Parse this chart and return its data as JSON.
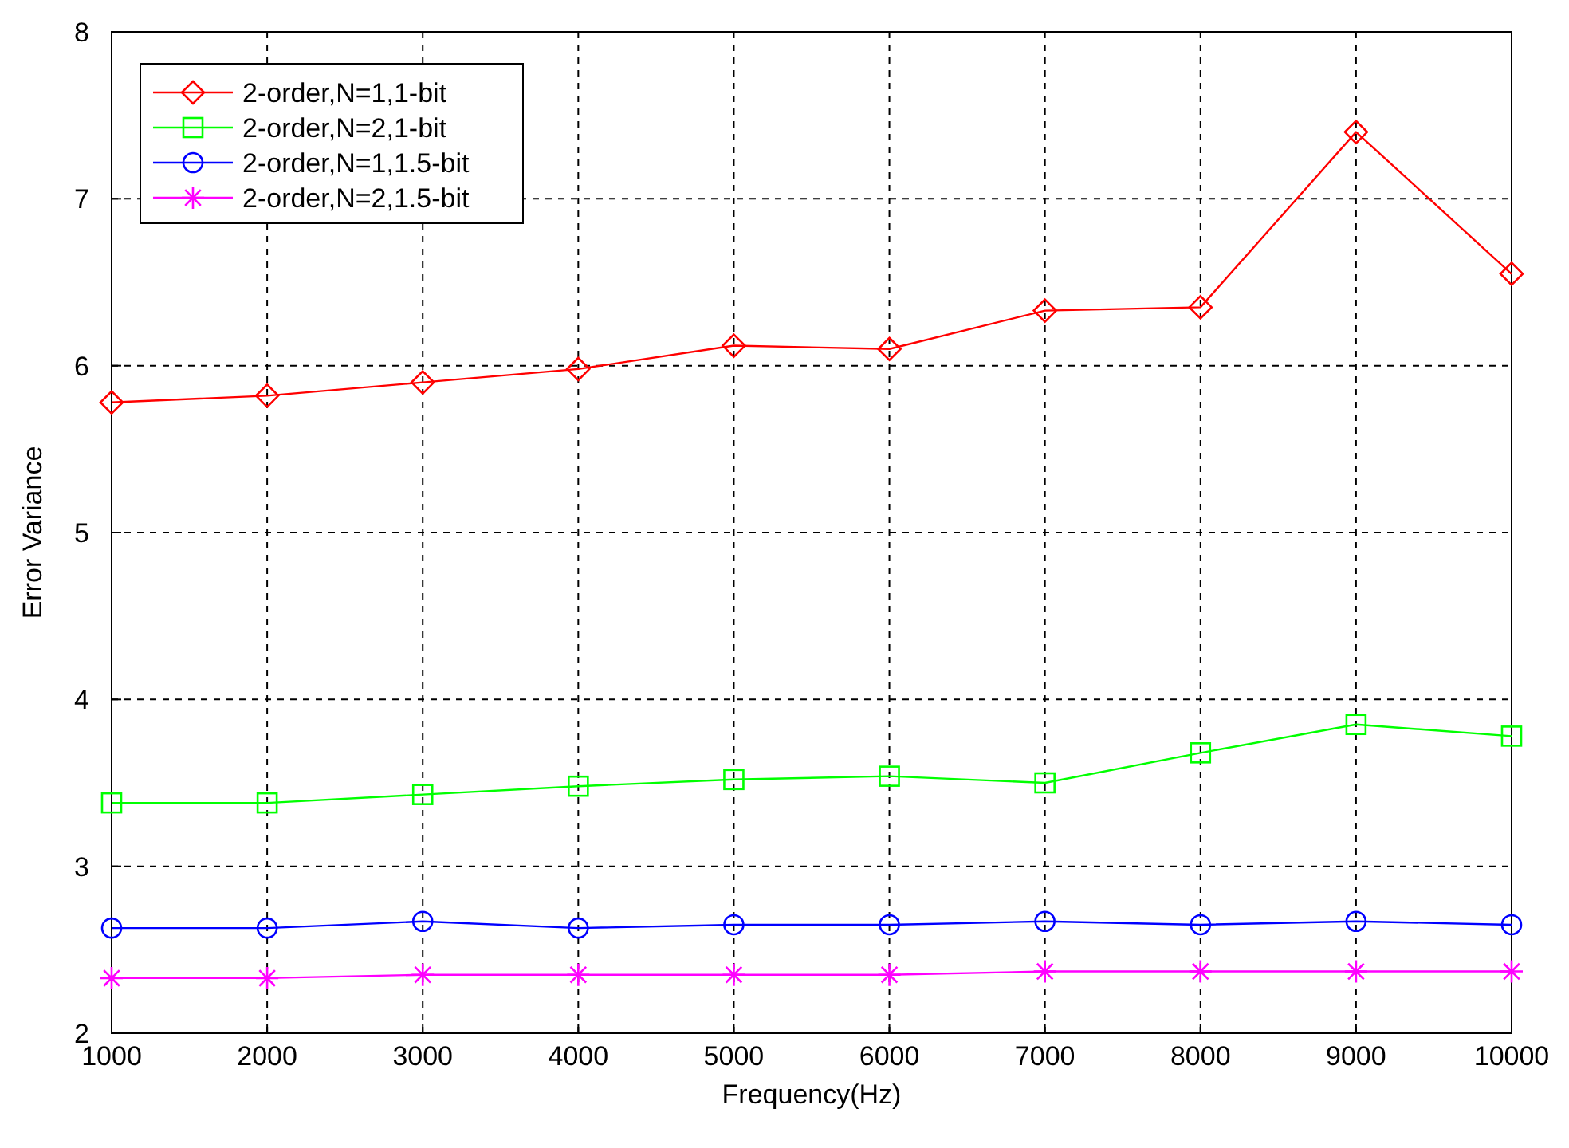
{
  "chart_data": {
    "type": "line",
    "xlabel": "Frequency(Hz)",
    "ylabel": "Error Variance",
    "x": [
      1000,
      2000,
      3000,
      4000,
      5000,
      6000,
      7000,
      8000,
      9000,
      10000
    ],
    "xlim": [
      1000,
      10000
    ],
    "xticks": [
      1000,
      2000,
      3000,
      4000,
      5000,
      6000,
      7000,
      8000,
      9000,
      10000
    ],
    "ylim": [
      2,
      8
    ],
    "yticks": [
      2,
      3,
      4,
      5,
      6,
      7,
      8
    ],
    "grid": true,
    "legend": "top left",
    "series": [
      {
        "name": "2-order,N=1,1-bit",
        "color": "#ff0000",
        "marker": "diamond",
        "values": [
          5.78,
          5.82,
          5.9,
          5.98,
          6.12,
          6.1,
          6.33,
          6.35,
          7.4,
          6.55
        ]
      },
      {
        "name": "2-order,N=2,1-bit",
        "color": "#00ff00",
        "marker": "square",
        "values": [
          3.38,
          3.38,
          3.43,
          3.48,
          3.52,
          3.54,
          3.5,
          3.68,
          3.85,
          3.78
        ]
      },
      {
        "name": "2-order,N=1,1.5-bit",
        "color": "#0000ff",
        "marker": "circle",
        "values": [
          2.63,
          2.63,
          2.67,
          2.63,
          2.65,
          2.65,
          2.67,
          2.65,
          2.67,
          2.65
        ]
      },
      {
        "name": "2-order,N=2,1.5-bit",
        "color": "#ff00ff",
        "marker": "cross",
        "values": [
          2.33,
          2.33,
          2.35,
          2.35,
          2.35,
          2.35,
          2.37,
          2.37,
          2.37,
          2.37
        ]
      }
    ]
  }
}
